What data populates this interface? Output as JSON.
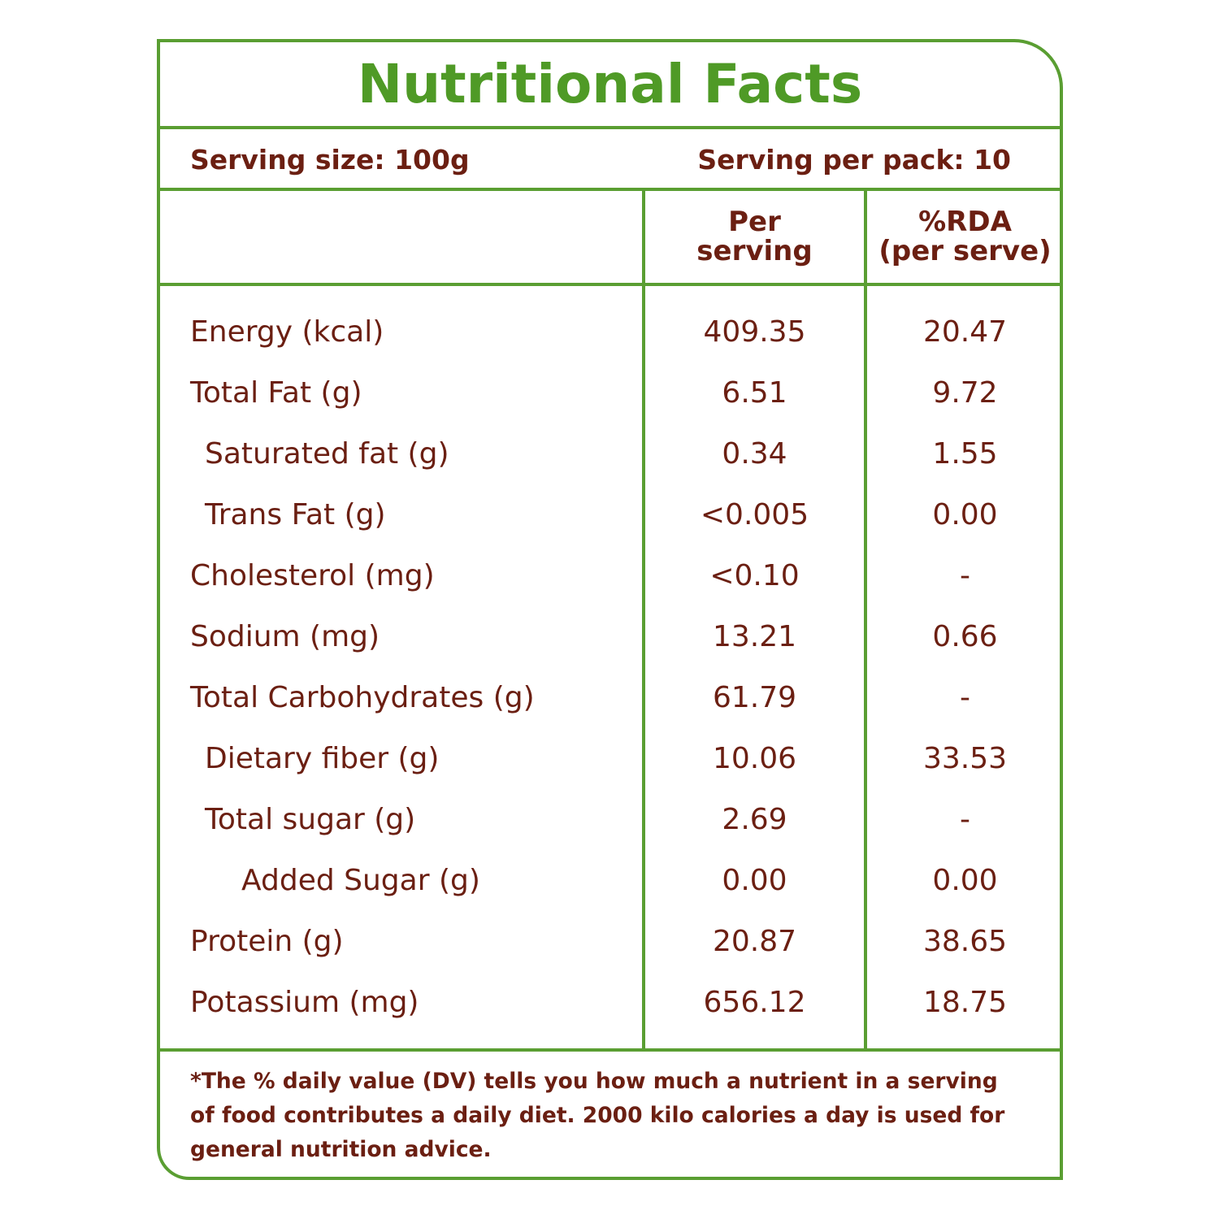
{
  "title": "Nutritional Facts",
  "serving": {
    "size": "Serving size: 100g",
    "per_pack": "Serving per pack: 10"
  },
  "columns": {
    "per_serving_line1": "Per",
    "per_serving_line2": "serving",
    "rda_line1": "%RDA",
    "rda_line2": "(per serve)"
  },
  "rows": [
    {
      "name": "Energy (kcal)",
      "per": "409.35",
      "rda": "20.47"
    },
    {
      "name": "Total Fat (g)",
      "per": "6.51",
      "rda": "9.72"
    },
    {
      "name": "Saturated fat (g)",
      "per": "0.34",
      "rda": "1.55"
    },
    {
      "name": "Trans Fat (g)",
      "per": "<0.005",
      "rda": "0.00"
    },
    {
      "name": "Cholesterol (mg)",
      "per": "<0.10",
      "rda": "-"
    },
    {
      "name": "Sodium (mg)",
      "per": "13.21",
      "rda": "0.66"
    },
    {
      "name": "Total Carbohydrates  (g)",
      "per": "61.79",
      "rda": "-"
    },
    {
      "name": "Dietary fiber (g)",
      "per": "10.06",
      "rda": "33.53"
    },
    {
      "name": "Total sugar (g)",
      "per": "2.69",
      "rda": "-"
    },
    {
      "name": "Added Sugar (g)",
      "per": "0.00",
      "rda": "0.00"
    },
    {
      "name": "Protein (g)",
      "per": "20.87",
      "rda": "38.65"
    },
    {
      "name": "Potassium (mg)",
      "per": "656.12",
      "rda": "18.75"
    }
  ],
  "footnote": "*The % daily value (DV) tells you how much a nutrient in a serving of food contributes a daily diet. 2000 kilo calories a day is used for general nutrition advice.",
  "colors": {
    "border": "#5a9e32",
    "title": "#4f9a26",
    "text": "#6b1f12"
  }
}
